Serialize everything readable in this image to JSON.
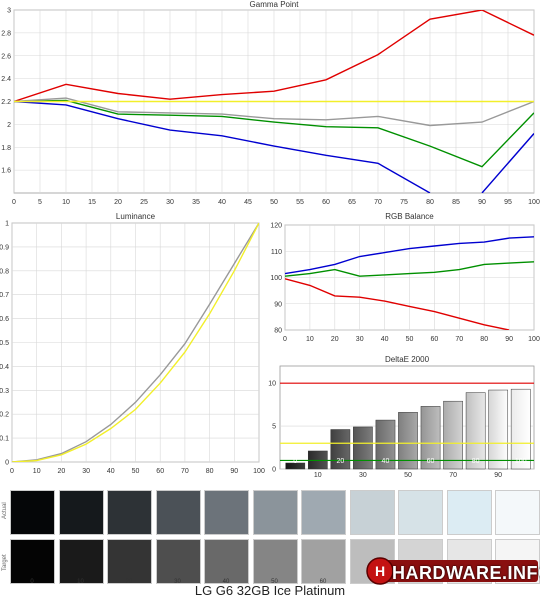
{
  "chart_data": [
    {
      "type": "line",
      "title": "Gamma Point",
      "x": [
        0,
        10,
        20,
        30,
        40,
        50,
        60,
        70,
        80,
        90,
        100
      ],
      "xlim": [
        0,
        100
      ],
      "ylim": [
        1.4,
        3.0
      ],
      "yticks": [
        "1.6",
        "1.8",
        "2",
        "2.2",
        "2.4",
        "2.6",
        "2.8",
        "3"
      ],
      "xticks": [
        "0",
        "5",
        "10",
        "15",
        "20",
        "25",
        "30",
        "35",
        "40",
        "45",
        "50",
        "55",
        "60",
        "65",
        "70",
        "75",
        "80",
        "85",
        "90",
        "95",
        "100"
      ],
      "series": [
        {
          "color": "#e00000",
          "values": [
            2.2,
            2.35,
            2.27,
            2.22,
            2.26,
            2.29,
            2.39,
            2.61,
            2.92,
            3.0,
            2.78
          ]
        },
        {
          "color": "#009000",
          "values": [
            2.2,
            2.21,
            2.09,
            2.08,
            2.07,
            2.02,
            1.98,
            1.97,
            1.81,
            1.63,
            2.1
          ]
        },
        {
          "color": "#0000d0",
          "values": [
            2.2,
            2.17,
            2.05,
            1.95,
            1.9,
            1.81,
            1.73,
            1.66,
            1.4,
            null,
            null
          ]
        },
        {
          "color": "#0000d0",
          "values": [
            null,
            null,
            null,
            null,
            null,
            null,
            null,
            null,
            null,
            1.4,
            1.92
          ]
        },
        {
          "color": "#999999",
          "values": [
            2.2,
            2.23,
            2.11,
            2.1,
            2.09,
            2.05,
            2.04,
            2.07,
            1.99,
            2.02,
            2.2
          ]
        },
        {
          "color": "#f2ef2a",
          "values": [
            2.2,
            2.2,
            2.2,
            2.2,
            2.2,
            2.2,
            2.2,
            2.2,
            2.2,
            2.2,
            2.2
          ]
        }
      ]
    },
    {
      "type": "line",
      "title": "Luminance",
      "x": [
        0,
        10,
        20,
        30,
        40,
        50,
        60,
        70,
        80,
        90,
        100
      ],
      "xlim": [
        0,
        100
      ],
      "ylim": [
        0,
        1
      ],
      "yticks": [
        "0",
        "0.1",
        "0.2",
        "0.3",
        "0.4",
        "0.5",
        "0.6",
        "0.7",
        "0.8",
        "0.9",
        "1"
      ],
      "xticks": [
        "0",
        "10",
        "20",
        "30",
        "40",
        "50",
        "60",
        "70",
        "80",
        "90",
        "100"
      ],
      "series": [
        {
          "color": "#999999",
          "values": [
            0,
            0.009,
            0.035,
            0.085,
            0.157,
            0.25,
            0.365,
            0.495,
            0.66,
            0.83,
            1.0
          ]
        },
        {
          "color": "#f2ef2a",
          "values": [
            0,
            0.006,
            0.03,
            0.075,
            0.14,
            0.22,
            0.33,
            0.46,
            0.62,
            0.8,
            1.0
          ]
        }
      ]
    },
    {
      "type": "line",
      "title": "RGB Balance",
      "x": [
        0,
        10,
        20,
        30,
        40,
        50,
        60,
        70,
        80,
        90,
        100
      ],
      "xlim": [
        0,
        100
      ],
      "ylim": [
        80,
        120
      ],
      "yticks": [
        "80",
        "90",
        "100",
        "110",
        "120"
      ],
      "xticks": [
        "0",
        "10",
        "20",
        "30",
        "40",
        "50",
        "60",
        "70",
        "80",
        "90",
        "100"
      ],
      "series": [
        {
          "color": "#0000d0",
          "values": [
            101.5,
            103,
            105,
            108,
            109.5,
            111,
            112,
            113,
            113.5,
            115,
            115.5
          ]
        },
        {
          "color": "#009000",
          "values": [
            100.5,
            101.5,
            103,
            100.5,
            101,
            101.5,
            102,
            103,
            105,
            105.5,
            106
          ]
        },
        {
          "color": "#e00000",
          "values": [
            99.5,
            97,
            93,
            92.5,
            91,
            89,
            87,
            84.5,
            82,
            80,
            null
          ]
        }
      ]
    },
    {
      "type": "bar",
      "title": "DeltaE 2000",
      "categories": [
        "0",
        "10",
        "20",
        "30",
        "40",
        "50",
        "60",
        "70",
        "80",
        "90",
        "100"
      ],
      "values": [
        0.7,
        2.1,
        4.6,
        4.9,
        5.7,
        6.6,
        7.3,
        7.9,
        8.9,
        9.2,
        9.3
      ],
      "ylim": [
        0,
        12
      ],
      "yticks": [
        "0",
        "5",
        "10"
      ],
      "reference_lines": [
        {
          "value": 10,
          "color": "#e00000"
        },
        {
          "value": 3,
          "color": "#f2ef2a"
        },
        {
          "value": 1,
          "color": "#009000"
        }
      ]
    }
  ],
  "swatches": {
    "actual_label": "Actual",
    "target_label": "Target",
    "steps": [
      "0",
      "10",
      "20",
      "30",
      "40",
      "50",
      "60",
      "70",
      "80",
      "90",
      "100"
    ],
    "visible_step_labels": [
      "0",
      "10",
      "20",
      "30",
      "40",
      "50",
      "60"
    ],
    "actual_colors": [
      "#050608",
      "#15191c",
      "#2d3236",
      "#4b5157",
      "#6c737a",
      "#8b949b",
      "#9fa9b1",
      "#c7d1d6",
      "#d6e2e7",
      "#dcecf3",
      "#f4f8fa"
    ],
    "target_colors": [
      "#040404",
      "#1a1a1a",
      "#343434",
      "#4e4e4e",
      "#696969",
      "#858585",
      "#a1a1a1",
      "#bdbdbd",
      "#d4d4d4",
      "#e6e6e6",
      "#f5f5f5"
    ]
  },
  "footer": {
    "title": "LG G6 32GB Ice Platinum"
  },
  "logo": {
    "text": "HARDWARE.INFO"
  }
}
